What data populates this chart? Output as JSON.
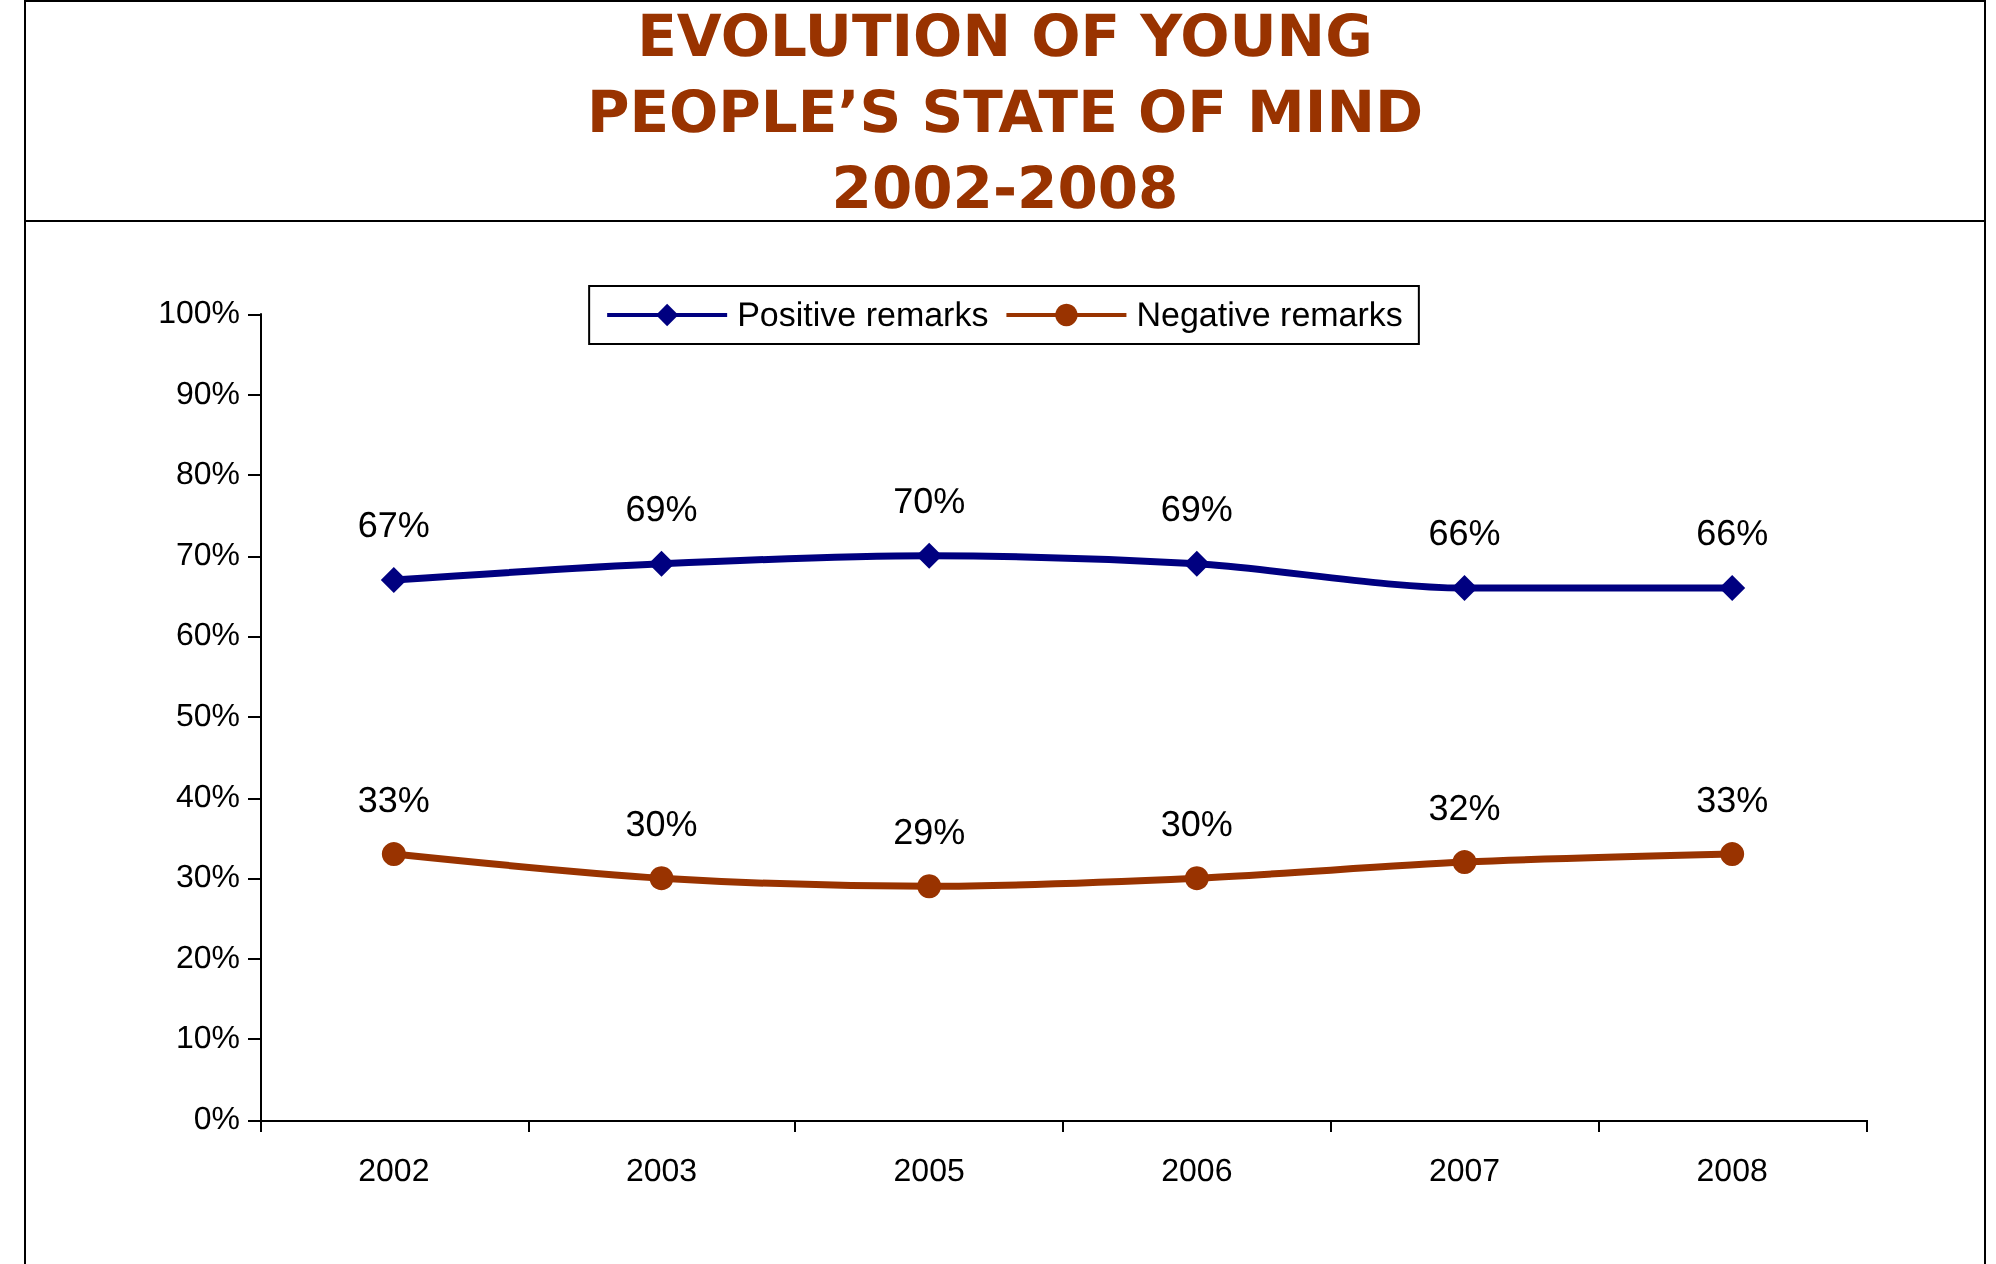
{
  "chart_data": {
    "type": "line",
    "title": "EVOLUTION OF YOUNG PEOPLE’S STATE OF MIND 2002-2008",
    "categories": [
      "2002",
      "2003",
      "2005",
      "2006",
      "2007",
      "2008"
    ],
    "series": [
      {
        "name": "Positive remarks",
        "color": "#000080",
        "marker": "diamond",
        "values": [
          67,
          69,
          70,
          69,
          66,
          66
        ],
        "value_labels": [
          "67%",
          "69%",
          "70%",
          "69%",
          "66%",
          "66%"
        ]
      },
      {
        "name": "Negative remarks",
        "color": "#993300",
        "marker": "circle",
        "values": [
          33,
          30,
          29,
          30,
          32,
          33
        ],
        "value_labels": [
          "33%",
          "30%",
          "29%",
          "30%",
          "32%",
          "33%"
        ]
      }
    ],
    "ylim": [
      0,
      100
    ],
    "yticks": [
      {
        "value": 0,
        "label": "0%"
      },
      {
        "value": 10,
        "label": "10%"
      },
      {
        "value": 20,
        "label": "20%"
      },
      {
        "value": 30,
        "label": "30%"
      },
      {
        "value": 40,
        "label": "40%"
      },
      {
        "value": 50,
        "label": "50%"
      },
      {
        "value": 60,
        "label": "60%"
      },
      {
        "value": 70,
        "label": "70%"
      },
      {
        "value": 80,
        "label": "80%"
      },
      {
        "value": 90,
        "label": "90%"
      },
      {
        "value": 100,
        "label": "100%"
      }
    ],
    "grid": false,
    "legend": "top",
    "line_style": "solid"
  }
}
